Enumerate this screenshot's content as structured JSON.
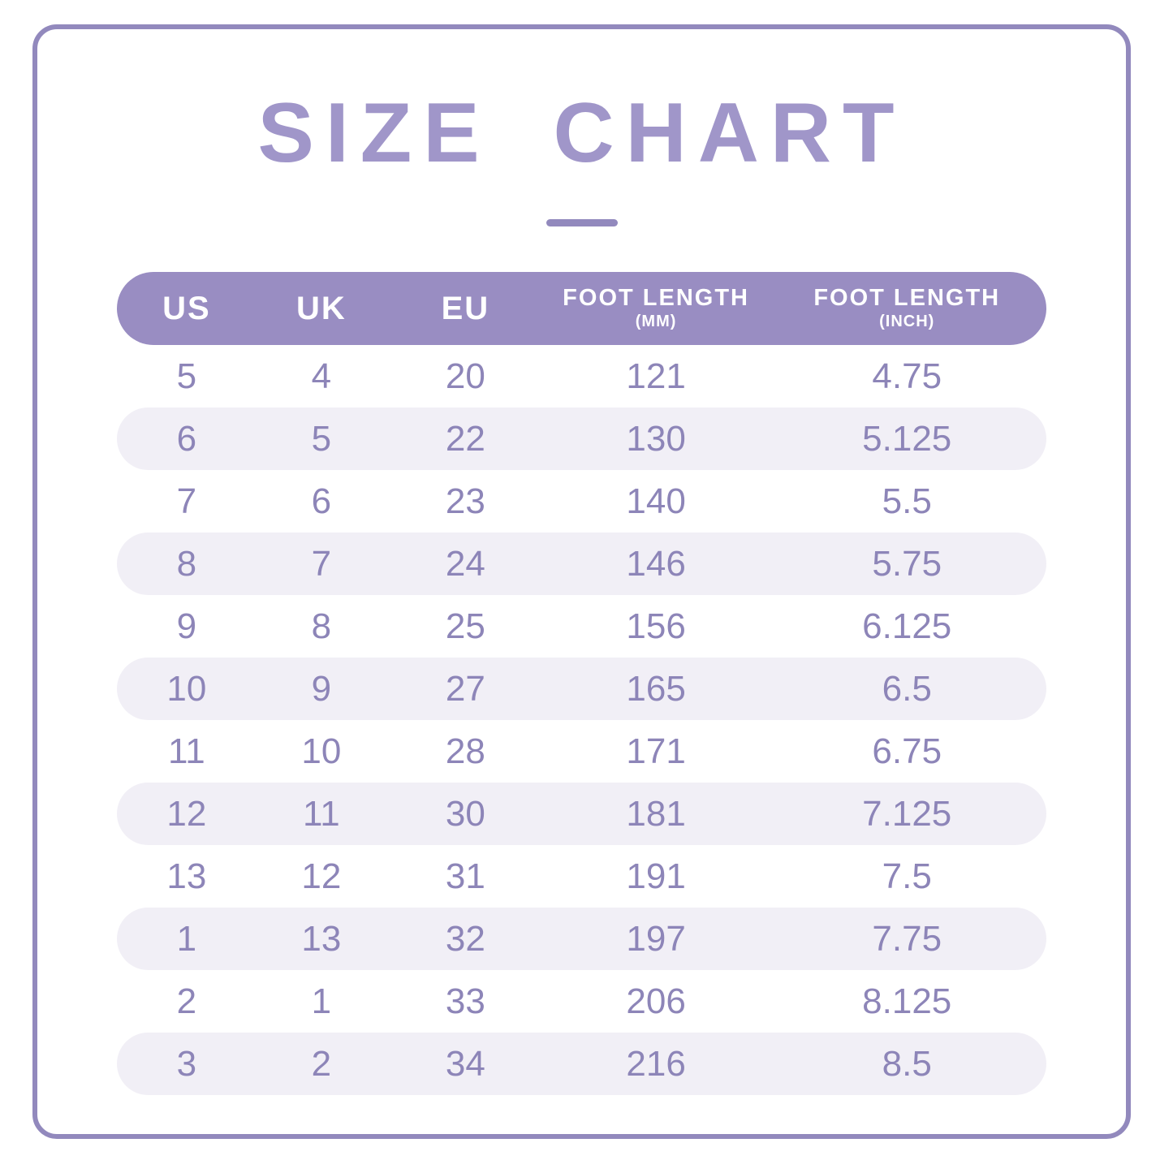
{
  "title": "SIZE CHART",
  "colors": {
    "accent": "#998dc2",
    "border": "#9289bd",
    "title_text": "#a096c9",
    "row_alt_bg": "#f1eff6",
    "row_text": "#8d85b8",
    "header_text": "#ffffff"
  },
  "chart_data": {
    "type": "table",
    "title": "SIZE CHART",
    "columns": [
      {
        "label": "US",
        "sub": ""
      },
      {
        "label": "UK",
        "sub": ""
      },
      {
        "label": "EU",
        "sub": ""
      },
      {
        "label": "FOOT LENGTH",
        "sub": "(MM)"
      },
      {
        "label": "FOOT LENGTH",
        "sub": "(INCH)"
      }
    ],
    "rows": [
      [
        "5",
        "4",
        "20",
        "121",
        "4.75"
      ],
      [
        "6",
        "5",
        "22",
        "130",
        "5.125"
      ],
      [
        "7",
        "6",
        "23",
        "140",
        "5.5"
      ],
      [
        "8",
        "7",
        "24",
        "146",
        "5.75"
      ],
      [
        "9",
        "8",
        "25",
        "156",
        "6.125"
      ],
      [
        "10",
        "9",
        "27",
        "165",
        "6.5"
      ],
      [
        "11",
        "10",
        "28",
        "171",
        "6.75"
      ],
      [
        "12",
        "11",
        "30",
        "181",
        "7.125"
      ],
      [
        "13",
        "12",
        "31",
        "191",
        "7.5"
      ],
      [
        "1",
        "13",
        "32",
        "197",
        "7.75"
      ],
      [
        "2",
        "1",
        "33",
        "206",
        "8.125"
      ],
      [
        "3",
        "2",
        "34",
        "216",
        "8.5"
      ]
    ]
  }
}
